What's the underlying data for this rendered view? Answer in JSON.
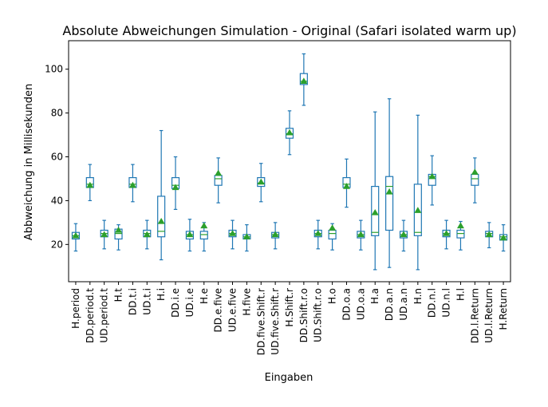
{
  "chart_data": {
    "type": "box",
    "title": "Absolute Abweichungen Simulation - Original (Safari isolated warm up)",
    "xlabel": "Eingaben",
    "ylabel": "Abbweichung in Millisekunden",
    "ylim": [
      3,
      113
    ],
    "yticks": [
      20,
      40,
      60,
      80,
      100
    ],
    "grid": false,
    "colors": {
      "box": "#1f77b4",
      "median": "#2ca02c",
      "mean": "#2ca02c"
    },
    "categories": [
      "H.period",
      "DD.period.t",
      "UD.period.t",
      "H.t",
      "DD.t.i",
      "UD.t.i",
      "H.i",
      "DD.i.e",
      "UD.i.e",
      "H.e",
      "DD.e.five",
      "UD.e.five",
      "H.five",
      "DD.five.Shift.r",
      "UD.five.Shift.r",
      "H.Shift.r",
      "DD.Shift.r.o",
      "UD.Shift.r.o",
      "H.o",
      "DD.o.a",
      "UD.o.a",
      "H.a",
      "DD.a.n",
      "UD.a.n",
      "H.n",
      "DD.n.l",
      "UD.n.l",
      "H.l",
      "DD.l.Return",
      "UD.l.Return",
      "H.Return"
    ],
    "boxes": [
      {
        "whislo": 17,
        "q1": 22.5,
        "med": 24,
        "q3": 25.5,
        "whishi": 29.5,
        "mean": 24
      },
      {
        "whislo": 40,
        "q1": 46,
        "med": 47.5,
        "q3": 50.5,
        "whishi": 56.5,
        "mean": 47
      },
      {
        "whislo": 18,
        "q1": 23.5,
        "med": 25,
        "q3": 26.5,
        "whishi": 31,
        "mean": 24.5
      },
      {
        "whislo": 17.5,
        "q1": 22.5,
        "med": 25,
        "q3": 27,
        "whishi": 29,
        "mean": 26.5
      },
      {
        "whislo": 39.5,
        "q1": 46,
        "med": 47.5,
        "q3": 50.5,
        "whishi": 56.5,
        "mean": 47
      },
      {
        "whislo": 18,
        "q1": 23.5,
        "med": 25,
        "q3": 26.5,
        "whishi": 31,
        "mean": 24.5
      },
      {
        "whislo": 13,
        "q1": 23.5,
        "med": 26,
        "q3": 42,
        "whishi": 72,
        "mean": 30.5
      },
      {
        "whislo": 36,
        "q1": 45.5,
        "med": 47,
        "q3": 50.5,
        "whishi": 60,
        "mean": 46
      },
      {
        "whislo": 17,
        "q1": 22.5,
        "med": 24.5,
        "q3": 26,
        "whishi": 31.5,
        "mean": 24.5
      },
      {
        "whislo": 17,
        "q1": 22.5,
        "med": 24.5,
        "q3": 26,
        "whishi": 30,
        "mean": 28.5
      },
      {
        "whislo": 39,
        "q1": 47,
        "med": 50,
        "q3": 51.5,
        "whishi": 59.5,
        "mean": 52.5
      },
      {
        "whislo": 18,
        "q1": 23.5,
        "med": 25,
        "q3": 26.5,
        "whishi": 31,
        "mean": 25
      },
      {
        "whislo": 17,
        "q1": 22.5,
        "med": 23.5,
        "q3": 24.5,
        "whishi": 29,
        "mean": 23.5
      },
      {
        "whislo": 39.5,
        "q1": 46.5,
        "med": 48,
        "q3": 50.5,
        "whishi": 57,
        "mean": 48.5
      },
      {
        "whislo": 18,
        "q1": 23,
        "med": 24.5,
        "q3": 25.5,
        "whishi": 30,
        "mean": 24.5
      },
      {
        "whislo": 61,
        "q1": 68.5,
        "med": 70.5,
        "q3": 73,
        "whishi": 81,
        "mean": 71
      },
      {
        "whislo": 83.5,
        "q1": 93,
        "med": 94.5,
        "q3": 98,
        "whishi": 107,
        "mean": 94.5
      },
      {
        "whislo": 18,
        "q1": 23.5,
        "med": 25,
        "q3": 26.5,
        "whishi": 31,
        "mean": 25
      },
      {
        "whislo": 17.5,
        "q1": 22.5,
        "med": 25,
        "q3": 26.5,
        "whishi": 29.5,
        "mean": 27.5
      },
      {
        "whislo": 37,
        "q1": 46,
        "med": 47.5,
        "q3": 50.5,
        "whishi": 59,
        "mean": 46.5
      },
      {
        "whislo": 17.5,
        "q1": 23,
        "med": 24.5,
        "q3": 26,
        "whishi": 31,
        "mean": 24.5
      },
      {
        "whislo": 8.5,
        "q1": 24,
        "med": 25.5,
        "q3": 46.5,
        "whishi": 80.5,
        "mean": 34.5
      },
      {
        "whislo": 9.5,
        "q1": 26.5,
        "med": 46.5,
        "q3": 51,
        "whishi": 86.5,
        "mean": 44
      },
      {
        "whislo": 17,
        "q1": 23,
        "med": 24.5,
        "q3": 26,
        "whishi": 31,
        "mean": 24.5
      },
      {
        "whislo": 8.5,
        "q1": 24,
        "med": 25.5,
        "q3": 47.5,
        "whishi": 79,
        "mean": 35.5
      },
      {
        "whislo": 38,
        "q1": 47,
        "med": 51,
        "q3": 52,
        "whishi": 60.5,
        "mean": 51
      },
      {
        "whislo": 18,
        "q1": 23.5,
        "med": 25,
        "q3": 26.5,
        "whishi": 31,
        "mean": 25
      },
      {
        "whislo": 17.5,
        "q1": 23,
        "med": 25,
        "q3": 26.5,
        "whishi": 30.5,
        "mean": 28.5
      },
      {
        "whislo": 39,
        "q1": 47,
        "med": 50,
        "q3": 52,
        "whishi": 59.5,
        "mean": 53
      },
      {
        "whislo": 18.5,
        "q1": 23.5,
        "med": 25,
        "q3": 26,
        "whishi": 30,
        "mean": 24.5
      },
      {
        "whislo": 17,
        "q1": 22,
        "med": 23.5,
        "q3": 24.5,
        "whishi": 29,
        "mean": 23
      }
    ]
  }
}
